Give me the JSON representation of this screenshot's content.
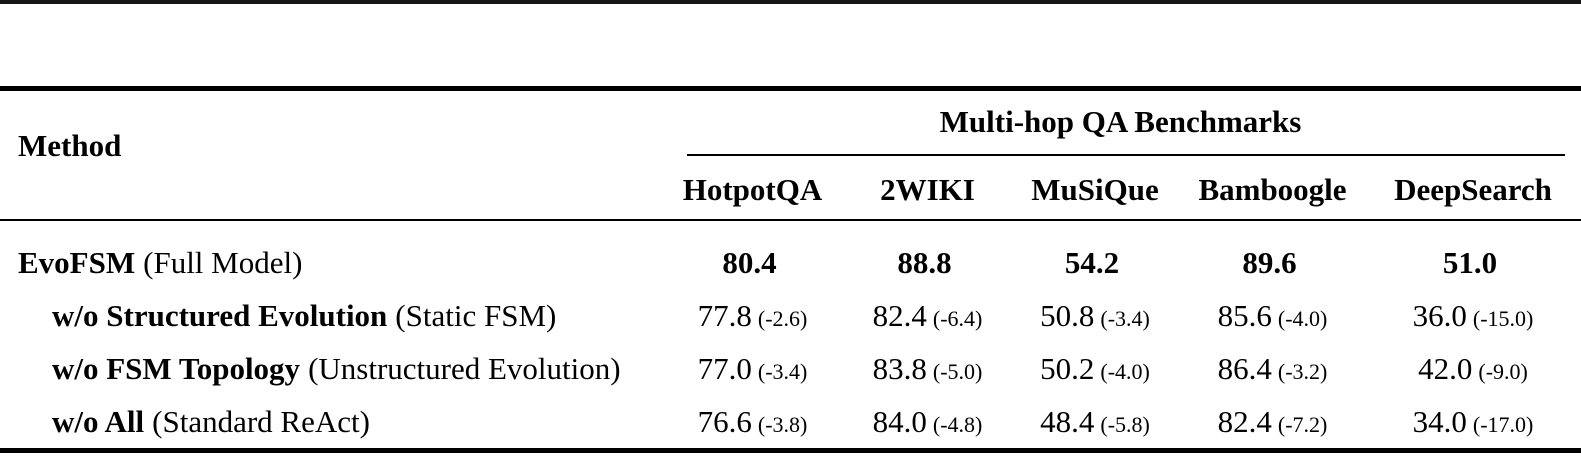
{
  "page": {
    "background": "#ffffff",
    "text_color": "#000000",
    "rule_color": "#000000"
  },
  "table": {
    "method_header": "Method",
    "group_header": "Multi-hop QA Benchmarks",
    "columns": [
      "HotpotQA",
      "2WIKI",
      "MuSiQue",
      "Bamboogle",
      "DeepSearch"
    ],
    "rows": [
      {
        "label_bold": "EvoFSM",
        "label_note": "(Full Model)",
        "cells": [
          {
            "value": "80.4",
            "delta": ""
          },
          {
            "value": "88.8",
            "delta": ""
          },
          {
            "value": "54.2",
            "delta": ""
          },
          {
            "value": "89.6",
            "delta": ""
          },
          {
            "value": "51.0",
            "delta": ""
          }
        ]
      },
      {
        "label_bold": "w/o Structured Evolution",
        "label_note": "(Static FSM)",
        "cells": [
          {
            "value": "77.8",
            "delta": "(-2.6)"
          },
          {
            "value": "82.4",
            "delta": "(-6.4)"
          },
          {
            "value": "50.8",
            "delta": "(-3.4)"
          },
          {
            "value": "85.6",
            "delta": "(-4.0)"
          },
          {
            "value": "36.0",
            "delta": "(-15.0)"
          }
        ]
      },
      {
        "label_bold": "w/o FSM Topology",
        "label_note": "(Unstructured Evolution)",
        "cells": [
          {
            "value": "77.0",
            "delta": "(-3.4)"
          },
          {
            "value": "83.8",
            "delta": "(-5.0)"
          },
          {
            "value": "50.2",
            "delta": "(-4.0)"
          },
          {
            "value": "86.4",
            "delta": "(-3.2)"
          },
          {
            "value": "42.0",
            "delta": "(-9.0)"
          }
        ]
      },
      {
        "label_bold": "w/o All",
        "label_note": "(Standard ReAct)",
        "cells": [
          {
            "value": "76.6",
            "delta": "(-3.8)"
          },
          {
            "value": "84.0",
            "delta": "(-4.8)"
          },
          {
            "value": "48.4",
            "delta": "(-5.8)"
          },
          {
            "value": "82.4",
            "delta": "(-7.2)"
          },
          {
            "value": "34.0",
            "delta": "(-17.0)"
          }
        ]
      }
    ]
  }
}
